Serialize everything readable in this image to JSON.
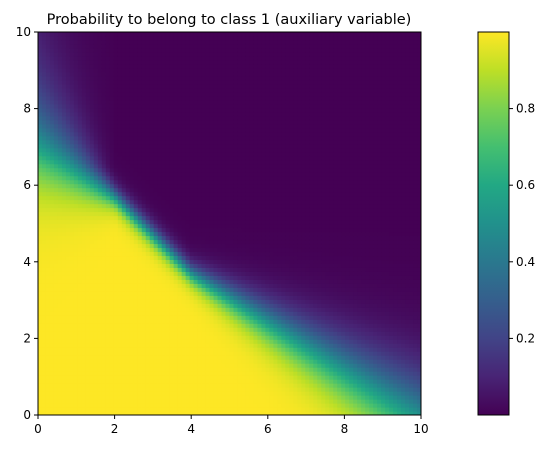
{
  "chart_data": {
    "type": "heatmap",
    "title": "Probability to belong to class 1 (auxiliary variable)",
    "xlabel": "",
    "ylabel": "",
    "xlim": [
      0,
      10
    ],
    "ylim": [
      0,
      10
    ],
    "x_ticks": [
      "0",
      "2",
      "4",
      "6",
      "8",
      "10"
    ],
    "y_ticks": [
      "0",
      "2",
      "4",
      "6",
      "8",
      "10"
    ],
    "colormap": "viridis",
    "colorbar": {
      "range": [
        0,
        1
      ],
      "ticks": [
        "0.2",
        "0.4",
        "0.6",
        "0.8"
      ],
      "tick_values": [
        0.2,
        0.4,
        0.6,
        0.8
      ]
    },
    "decision_boundary": {
      "x": [
        0,
        2,
        3,
        4,
        10
      ],
      "y": [
        7.2,
        5.7,
        4.7,
        3.7,
        0
      ]
    },
    "colors": {
      "low": "#481a6c",
      "mid": "#21918c",
      "high": "#fde725"
    }
  }
}
